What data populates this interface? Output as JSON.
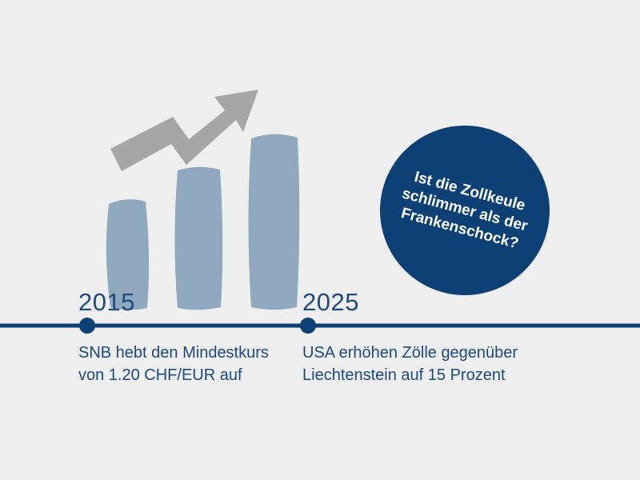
{
  "colors": {
    "background": "#eeeeee",
    "accent": "#1e4a7c",
    "bubble": "#0d4175",
    "bars": "#8fa8bd",
    "arrow": "#a6a6a6"
  },
  "illustration": {
    "icon": "growth-bar-chart-icon",
    "arrow_icon": "trend-up-arrow-icon"
  },
  "timeline": {
    "events": [
      {
        "year": "2015",
        "lines": [
          "SNB hebt den Mindestkurs",
          "von 1.20 CHF/EUR auf"
        ]
      },
      {
        "year": "2025",
        "lines": [
          "USA erhöhen Zölle gegenüber",
          "Liechtenstein auf 15 Prozent"
        ]
      }
    ]
  },
  "bubble": {
    "lines": [
      "Ist die Zollkeule",
      "schlimmer als der",
      "Frankenschock?"
    ]
  }
}
